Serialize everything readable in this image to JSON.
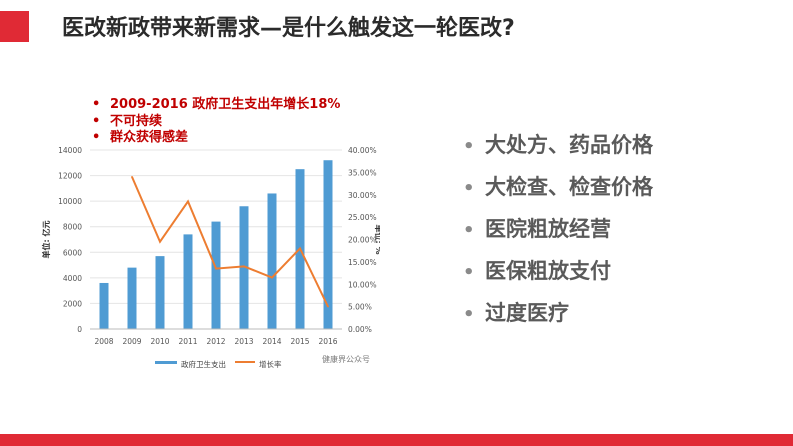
{
  "slide": {
    "title": "医改新政带来新需求—是什么触发这一轮医改?",
    "accent_color": "#e02a35"
  },
  "notes": [
    "2009-2016 政府卫生支出年增长18%",
    "不可持续",
    "群众获得感差"
  ],
  "bullets": [
    "大处方、药品价格",
    "大检查、检查价格",
    "医院粗放经营",
    "医保粗放支付",
    "过度医疗"
  ],
  "chart_data": {
    "type": "bar",
    "categories": [
      "2008",
      "2009",
      "2010",
      "2011",
      "2012",
      "2013",
      "2014",
      "2015",
      "2016"
    ],
    "series": [
      {
        "name": "政府卫生支出",
        "type": "bar",
        "axis": "left",
        "color": "#4f9bd3",
        "values": [
          3600,
          4800,
          5700,
          7400,
          8400,
          9600,
          10600,
          12500,
          13200
        ]
      },
      {
        "name": "增长率",
        "type": "line",
        "axis": "right",
        "color": "#ed7d31",
        "values": [
          null,
          34,
          19.5,
          28.5,
          13.5,
          14,
          11.5,
          18,
          5
        ]
      }
    ],
    "ylabel": "单位: 亿元",
    "y2label": "单位: %",
    "ylim": [
      0,
      14000
    ],
    "y2lim": [
      0,
      40
    ],
    "yticks": [
      "0",
      "2000",
      "4000",
      "6000",
      "8000",
      "10000",
      "12000",
      "14000"
    ],
    "y2ticks": [
      "0.00%",
      "5.00%",
      "10.00%",
      "15.00%",
      "20.00%",
      "25.00%",
      "30.00%",
      "35.00%",
      "40.00%"
    ],
    "grid": true,
    "legend_position": "bottom",
    "watermark": "健康界公众号"
  }
}
